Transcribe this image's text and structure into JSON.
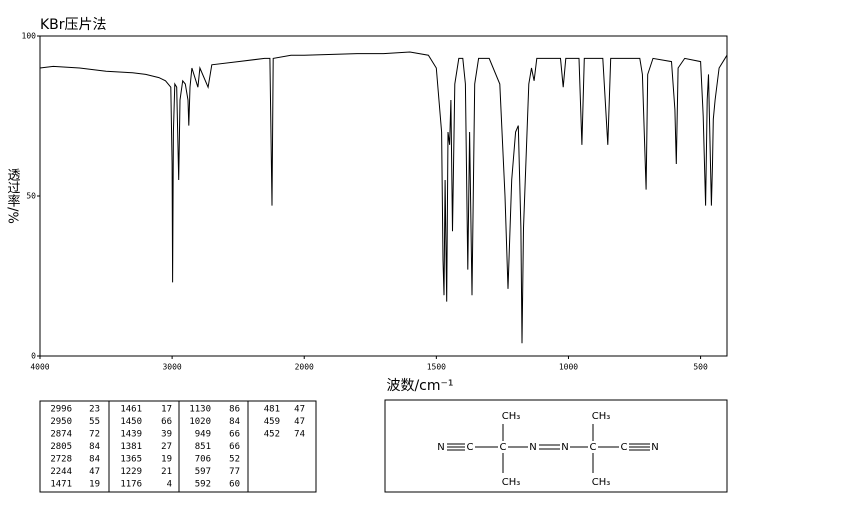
{
  "chart_data": {
    "type": "line",
    "title": "KBr压片法",
    "x_label": "波数/cm⁻¹",
    "y_label": "透过率/%",
    "xlim": [
      4000,
      400
    ],
    "xticks": [
      4000,
      3000,
      2000,
      1500,
      1000,
      500
    ],
    "x_scale_break": 2000,
    "ylim": [
      0,
      100
    ],
    "yticks": [
      0,
      50,
      100
    ],
    "color": "#000000",
    "x": [
      4000,
      3900,
      3700,
      3500,
      3300,
      3200,
      3100,
      3050,
      3010,
      3000,
      2996,
      2990,
      2980,
      2965,
      2950,
      2940,
      2920,
      2900,
      2880,
      2874,
      2865,
      2850,
      2805,
      2790,
      2728,
      2700,
      2500,
      2300,
      2260,
      2244,
      2235,
      2100,
      2000,
      1800,
      1700,
      1600,
      1530,
      1500,
      1480,
      1475,
      1471,
      1467,
      1461,
      1456,
      1450,
      1445,
      1439,
      1430,
      1415,
      1400,
      1390,
      1381,
      1374,
      1365,
      1355,
      1340,
      1300,
      1260,
      1240,
      1229,
      1215,
      1200,
      1190,
      1180,
      1176,
      1170,
      1150,
      1140,
      1130,
      1120,
      1050,
      1030,
      1020,
      1010,
      960,
      949,
      940,
      870,
      851,
      840,
      730,
      720,
      706,
      700,
      680,
      610,
      597,
      592,
      585,
      560,
      500,
      490,
      481,
      475,
      470,
      459,
      455,
      452,
      445,
      430,
      400
    ],
    "values": [
      90,
      90.5,
      90,
      89,
      88.5,
      88,
      87,
      86,
      84,
      60,
      23,
      70,
      85,
      84,
      55,
      80,
      86,
      85,
      80,
      72,
      84,
      90,
      84,
      90,
      84,
      91,
      92,
      93,
      93,
      47,
      93,
      94,
      94,
      94.5,
      94.5,
      95,
      94,
      90,
      70,
      30,
      19,
      55,
      17,
      70,
      66,
      80,
      39,
      85,
      93,
      93,
      85,
      27,
      70,
      19,
      85,
      93,
      93,
      85,
      50,
      21,
      55,
      70,
      72,
      40,
      4,
      40,
      85,
      90,
      86,
      93,
      93,
      93,
      84,
      93,
      93,
      66,
      93,
      93,
      66,
      93,
      93,
      88,
      52,
      88,
      93,
      92,
      77,
      60,
      90,
      93,
      92,
      75,
      47,
      80,
      88,
      47,
      60,
      74,
      80,
      90,
      94
    ]
  },
  "peak_table": [
    [
      [
        2996,
        23
      ],
      [
        2950,
        55
      ],
      [
        2874,
        72
      ],
      [
        2805,
        84
      ],
      [
        2728,
        84
      ],
      [
        2244,
        47
      ],
      [
        1471,
        19
      ]
    ],
    [
      [
        1461,
        17
      ],
      [
        1450,
        66
      ],
      [
        1439,
        39
      ],
      [
        1381,
        27
      ],
      [
        1365,
        19
      ],
      [
        1229,
        21
      ],
      [
        1176,
        4
      ]
    ],
    [
      [
        1130,
        86
      ],
      [
        1020,
        84
      ],
      [
        949,
        66
      ],
      [
        851,
        66
      ],
      [
        706,
        52
      ],
      [
        597,
        77
      ],
      [
        592,
        60
      ]
    ],
    [
      [
        481,
        47
      ],
      [
        459,
        47
      ],
      [
        452,
        74
      ]
    ]
  ],
  "structure": {
    "atoms": [
      "N",
      "C",
      "C",
      "N",
      "N",
      "C",
      "C",
      "N"
    ],
    "methyls": [
      "CH₃",
      "CH₃",
      "CH₃",
      "CH₃"
    ]
  }
}
